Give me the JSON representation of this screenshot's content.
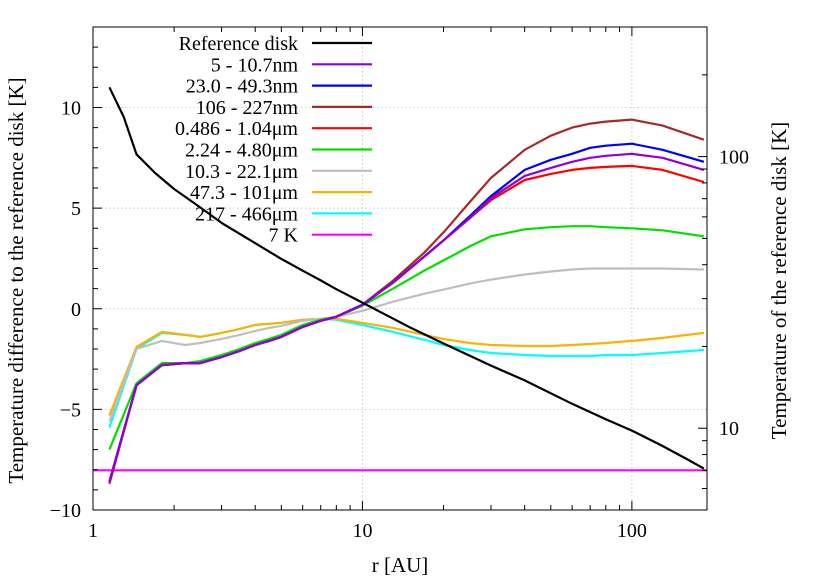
{
  "chart_data": {
    "type": "line",
    "title": "",
    "xlabel": "r [AU]",
    "ylabel": "Temperature difference to the reference disk [K]",
    "y2label": "Temperature of the reference disk [K]",
    "xscale": "log",
    "xlim": [
      1.0,
      190
    ],
    "ylim": [
      -10,
      14
    ],
    "y2scale": "log",
    "y2lim": [
      5.0,
      300
    ],
    "grid": true,
    "legend_position": "top-center",
    "x_ticks": [
      {
        "v": 1,
        "label": "1"
      },
      {
        "v": 10,
        "label": "10"
      },
      {
        "v": 100,
        "label": "100"
      }
    ],
    "y_ticks": [
      {
        "v": -10,
        "label": "−10"
      },
      {
        "v": -5,
        "label": "−5"
      },
      {
        "v": 0,
        "label": "0"
      },
      {
        "v": 5,
        "label": "5"
      },
      {
        "v": 10,
        "label": "10"
      }
    ],
    "y2_ticks": [
      {
        "v": 10,
        "label": "10"
      },
      {
        "v": 100,
        "label": "100"
      }
    ],
    "series": [
      {
        "name": "Reference disk",
        "color": "#000000",
        "axis": "y2",
        "x": [
          1.15,
          1.3,
          1.45,
          1.7,
          2.0,
          2.5,
          3.0,
          4.0,
          5.0,
          6.0,
          7.0,
          8.0,
          10,
          15,
          20,
          30,
          40,
          60,
          80,
          100,
          130,
          160,
          185
        ],
        "y": [
          180,
          140,
          102,
          87,
          76,
          65,
          57,
          48,
          42,
          38,
          35,
          32.5,
          29,
          23.5,
          20.5,
          17,
          15,
          12.3,
          10.8,
          9.8,
          8.6,
          7.7,
          7.1
        ]
      },
      {
        "name": "5 - 10.7nm",
        "color": "#9400d3",
        "x": [
          1.15,
          1.45,
          1.8,
          2.2,
          2.5,
          3.0,
          3.5,
          4.0,
          4.5,
          5.0,
          6.0,
          7.0,
          8.0,
          10,
          13,
          17,
          20,
          25,
          30,
          40,
          50,
          60,
          70,
          80,
          100,
          130,
          185
        ],
        "y": [
          -8.6,
          -3.8,
          -2.8,
          -2.7,
          -2.7,
          -2.4,
          -2.1,
          -1.8,
          -1.6,
          -1.4,
          -0.9,
          -0.6,
          -0.4,
          0.2,
          1.3,
          2.6,
          3.4,
          4.5,
          5.5,
          6.6,
          7.0,
          7.3,
          7.5,
          7.6,
          7.7,
          7.5,
          6.9
        ]
      },
      {
        "name": "23.0 - 49.3nm",
        "color": "#0000ff",
        "x": [
          1.15,
          1.45,
          1.8,
          2.2,
          2.5,
          3.0,
          3.5,
          4.0,
          4.5,
          5.0,
          6.0,
          7.0,
          8.0,
          10,
          13,
          17,
          20,
          25,
          30,
          40,
          50,
          60,
          70,
          80,
          100,
          130,
          185
        ],
        "y": [
          -8.6,
          -3.8,
          -2.8,
          -2.7,
          -2.7,
          -2.4,
          -2.1,
          -1.8,
          -1.6,
          -1.4,
          -0.9,
          -0.6,
          -0.4,
          0.2,
          1.3,
          2.6,
          3.4,
          4.6,
          5.6,
          6.9,
          7.4,
          7.7,
          8.0,
          8.1,
          8.2,
          7.9,
          7.3
        ]
      },
      {
        "name": "106 - 227nm",
        "color": "#a52a2a",
        "x": [
          1.15,
          1.45,
          1.8,
          2.2,
          2.5,
          3.0,
          3.5,
          4.0,
          4.5,
          5.0,
          6.0,
          7.0,
          8.0,
          10,
          13,
          17,
          20,
          25,
          30,
          40,
          50,
          60,
          70,
          80,
          100,
          130,
          185
        ],
        "y": [
          -8.6,
          -3.8,
          -2.8,
          -2.7,
          -2.7,
          -2.4,
          -2.1,
          -1.8,
          -1.6,
          -1.4,
          -0.9,
          -0.6,
          -0.4,
          0.2,
          1.4,
          2.8,
          3.8,
          5.3,
          6.5,
          7.9,
          8.6,
          9.0,
          9.2,
          9.3,
          9.4,
          9.1,
          8.4
        ]
      },
      {
        "name": "0.486 - 1.04μm",
        "color": "#ff0000",
        "x": [
          1.15,
          1.45,
          1.8,
          2.2,
          2.5,
          3.0,
          3.5,
          4.0,
          4.5,
          5.0,
          6.0,
          7.0,
          8.0,
          10,
          13,
          17,
          20,
          25,
          30,
          40,
          50,
          60,
          70,
          80,
          100,
          130,
          185
        ],
        "y": [
          -8.7,
          -3.8,
          -2.8,
          -2.7,
          -2.7,
          -2.4,
          -2.1,
          -1.8,
          -1.6,
          -1.4,
          -0.9,
          -0.6,
          -0.4,
          0.2,
          1.3,
          2.6,
          3.4,
          4.5,
          5.4,
          6.4,
          6.7,
          6.9,
          7.0,
          7.05,
          7.1,
          6.9,
          6.3
        ]
      },
      {
        "name": "2.24 - 4.80μm",
        "color": "#00e000",
        "x": [
          1.15,
          1.45,
          1.8,
          2.2,
          2.5,
          3.0,
          3.5,
          4.0,
          4.5,
          5.0,
          6.0,
          7.0,
          8.0,
          10,
          13,
          17,
          20,
          25,
          30,
          40,
          50,
          60,
          70,
          80,
          100,
          130,
          185
        ],
        "y": [
          -7.0,
          -3.7,
          -2.7,
          -2.7,
          -2.6,
          -2.3,
          -2.0,
          -1.7,
          -1.5,
          -1.3,
          -0.8,
          -0.55,
          -0.4,
          0.15,
          1.0,
          1.9,
          2.4,
          3.1,
          3.6,
          3.95,
          4.05,
          4.1,
          4.1,
          4.05,
          4.0,
          3.9,
          3.6
        ]
      },
      {
        "name": "10.3 - 22.1μm",
        "color": "#bebebe",
        "x": [
          1.15,
          1.45,
          1.8,
          2.2,
          2.5,
          3.0,
          3.5,
          4.0,
          4.5,
          5.0,
          6.0,
          7.0,
          8.0,
          10,
          13,
          17,
          20,
          25,
          30,
          40,
          50,
          60,
          70,
          80,
          100,
          130,
          185
        ],
        "y": [
          -5.6,
          -2.0,
          -1.6,
          -1.8,
          -1.7,
          -1.5,
          -1.3,
          -1.1,
          -0.95,
          -0.85,
          -0.6,
          -0.5,
          -0.4,
          -0.1,
          0.35,
          0.75,
          0.95,
          1.25,
          1.45,
          1.7,
          1.85,
          1.95,
          2.0,
          2.0,
          2.0,
          2.0,
          1.95
        ]
      },
      {
        "name": "47.3 - 101μm",
        "color": "#ffb000",
        "x": [
          1.15,
          1.45,
          1.8,
          2.2,
          2.5,
          3.0,
          3.5,
          4.0,
          4.5,
          5.0,
          6.0,
          7.0,
          8.0,
          10,
          13,
          17,
          20,
          25,
          30,
          40,
          50,
          60,
          70,
          80,
          100,
          130,
          185
        ],
        "y": [
          -5.3,
          -1.9,
          -1.15,
          -1.3,
          -1.4,
          -1.2,
          -1.0,
          -0.8,
          -0.75,
          -0.7,
          -0.55,
          -0.5,
          -0.5,
          -0.7,
          -0.95,
          -1.3,
          -1.5,
          -1.7,
          -1.8,
          -1.85,
          -1.85,
          -1.8,
          -1.75,
          -1.7,
          -1.6,
          -1.45,
          -1.2
        ]
      },
      {
        "name": "217 - 466μm",
        "color": "#00ffff",
        "x": [
          1.15,
          1.45,
          1.8,
          2.2,
          2.5,
          3.0,
          3.5,
          4.0,
          4.5,
          5.0,
          6.0,
          7.0,
          8.0,
          10,
          13,
          17,
          20,
          25,
          30,
          40,
          50,
          60,
          70,
          80,
          100,
          130,
          185
        ],
        "y": [
          -5.9,
          -2.0,
          -1.2,
          -1.3,
          -1.4,
          -1.2,
          -1.0,
          -0.8,
          -0.75,
          -0.7,
          -0.55,
          -0.5,
          -0.55,
          -0.8,
          -1.15,
          -1.55,
          -1.8,
          -2.05,
          -2.2,
          -2.3,
          -2.35,
          -2.35,
          -2.35,
          -2.3,
          -2.3,
          -2.2,
          -2.05
        ]
      },
      {
        "name": "7 K",
        "color": "#ff00ff",
        "axis": "y2",
        "x": [
          1.0,
          190
        ],
        "y": [
          7,
          7
        ]
      }
    ]
  }
}
